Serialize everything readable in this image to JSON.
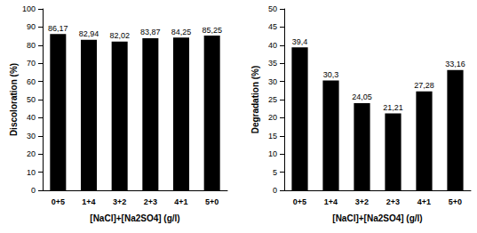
{
  "chart_data": [
    {
      "type": "bar",
      "categories": [
        "0+5",
        "1+4",
        "3+2",
        "2+3",
        "4+1",
        "5+0"
      ],
      "values": [
        86.17,
        82.94,
        82.02,
        83.87,
        84.25,
        85.25
      ],
      "value_labels": [
        "86,17",
        "82,94",
        "82,02",
        "83,87",
        "84,25",
        "85,25"
      ],
      "color": "#000000",
      "x_label": "[NaCl]+[Na2SO4] (g/l)",
      "y_label": "Discoloration (%)",
      "ylim": [
        0,
        100
      ],
      "yticks": [
        0,
        10,
        20,
        30,
        40,
        50,
        60,
        70,
        80,
        90,
        100
      ],
      "grid": false,
      "data_labels": true
    },
    {
      "type": "bar",
      "categories": [
        "0+5",
        "1+4",
        "3+2",
        "2+3",
        "4+1",
        "5+0"
      ],
      "values": [
        39.4,
        30.3,
        24.05,
        21.21,
        27.28,
        33.16
      ],
      "value_labels": [
        "39,4",
        "30,3",
        "24,05",
        "21,21",
        "27,28",
        "33,16"
      ],
      "color": "#000000",
      "x_label": "[NaCl]+[Na2SO4] (g/l)",
      "y_label": "Degradation (%)",
      "ylim": [
        0,
        50
      ],
      "yticks": [
        0,
        5,
        10,
        15,
        20,
        25,
        30,
        35,
        40,
        45,
        50
      ],
      "grid": false,
      "data_labels": true
    }
  ]
}
